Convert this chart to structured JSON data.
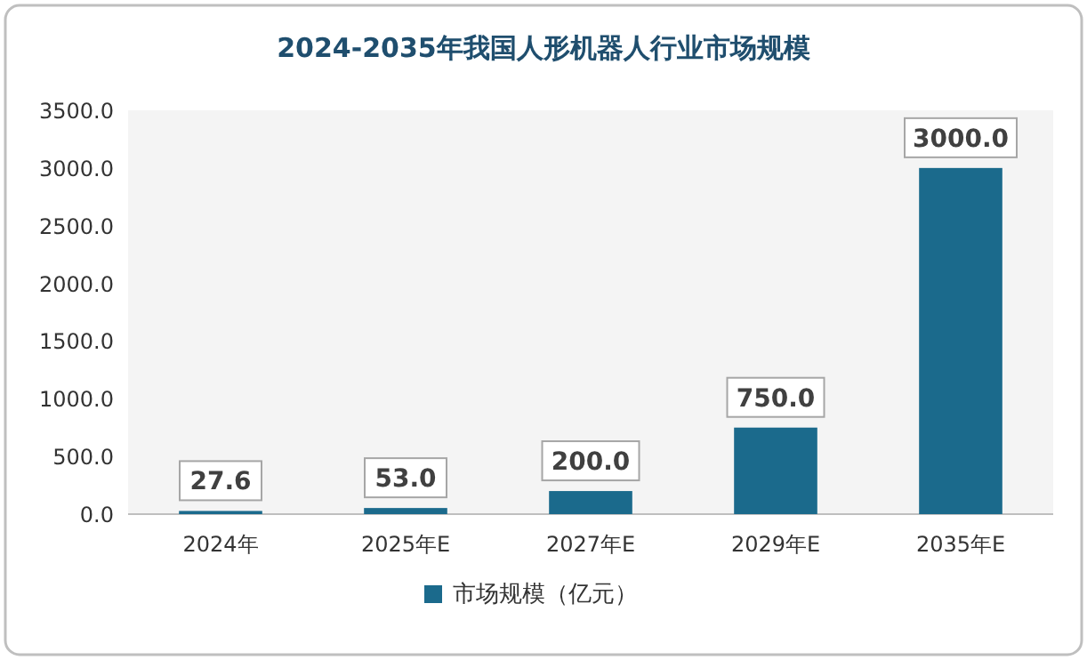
{
  "chart_data": {
    "type": "bar",
    "title": "2024-2035年我国人形机器人行业市场规模",
    "categories": [
      "2024年",
      "2025年E",
      "2027年E",
      "2029年E",
      "2035年E"
    ],
    "series": [
      {
        "name": "市场规模（亿元）",
        "color": "#1b6a8c",
        "values": [
          27.6,
          53.0,
          200.0,
          750.0,
          3000.0
        ],
        "value_labels": [
          "27.6",
          "53.0",
          "200.0",
          "750.0",
          "3000.0"
        ]
      }
    ],
    "ylim": [
      0,
      3500
    ],
    "yticks": [
      {
        "value": 0,
        "label": "0.0"
      },
      {
        "value": 500,
        "label": "500.0"
      },
      {
        "value": 1000,
        "label": "1000.0"
      },
      {
        "value": 1500,
        "label": "1500.0"
      },
      {
        "value": 2000,
        "label": "2000.0"
      },
      {
        "value": 2500,
        "label": "2500.0"
      },
      {
        "value": 3000,
        "label": "3000.0"
      },
      {
        "value": 3500,
        "label": "3500.0"
      }
    ],
    "legend": "bottom"
  }
}
